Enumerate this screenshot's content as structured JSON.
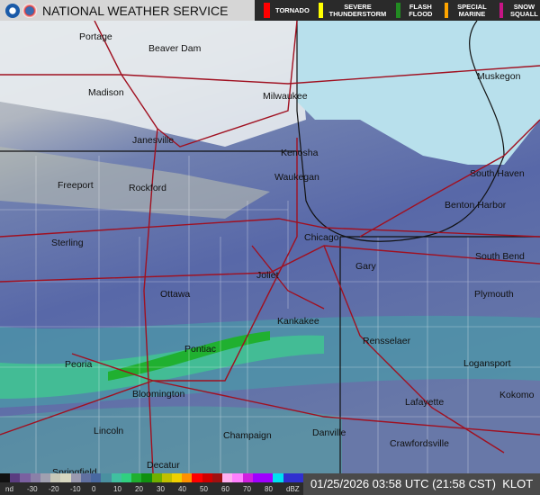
{
  "header": {
    "title": "NATIONAL WEATHER SERVICE",
    "logos": [
      "noaa-logo",
      "nws-logo"
    ]
  },
  "warnings_legend": [
    {
      "label": "TORNADO",
      "color": "#ff0000"
    },
    {
      "label": "SEVERE THUNDERSTORM",
      "color": "#ffff00"
    },
    {
      "label": "FLASH FLOOD",
      "color": "#228b22"
    },
    {
      "label": "SPECIAL MARINE",
      "color": "#ffa500"
    },
    {
      "label": "SNOW SQUALL",
      "color": "#c71585"
    }
  ],
  "map": {
    "cities": [
      "Portage",
      "Beaver Dam",
      "Madison",
      "Milwaukee",
      "Muskegon",
      "Janesville",
      "Kenosha",
      "South Haven",
      "Freeport",
      "Rockford",
      "Waukegan",
      "Benton Harbor",
      "Sterling",
      "Chicago",
      "South Bend",
      "Gary",
      "Joliet",
      "Ottawa",
      "Plymouth",
      "Kankakee",
      "Peoria",
      "Pontiac",
      "Rensselaer",
      "Logansport",
      "Bloomington",
      "Lafayette",
      "Kokomo",
      "Lincoln",
      "Champaign",
      "Danville",
      "Crawfordsville",
      "Decatur",
      "Springfield"
    ]
  },
  "reflectivity_scale": {
    "ticks": [
      "nd",
      "-30",
      "-20",
      "-10",
      "0",
      "10",
      "20",
      "30",
      "40",
      "50",
      "60",
      "70",
      "80",
      "dBZ"
    ],
    "colors": [
      "#111",
      "#5a3c80",
      "#7a60a0",
      "#8a80a8",
      "#a0a0b0",
      "#c8c8b8",
      "#d8d8c0",
      "#9a9ab0",
      "#6070a0",
      "#4868a0",
      "#4a90a0",
      "#40c0a0",
      "#30d080",
      "#20b030",
      "#109010",
      "#70b000",
      "#c0c000",
      "#f0d000",
      "#ff9000",
      "#ff0000",
      "#d00000",
      "#a01010",
      "#ffb0f0",
      "#ff80ff",
      "#d020e0",
      "#a000ff",
      "#a000ff",
      "#00e0f0",
      "#3030d0",
      "#3030d0"
    ]
  },
  "timestamp": "01/25/2026 03:58 UTC (21:58 CST)",
  "station": "KLOT"
}
